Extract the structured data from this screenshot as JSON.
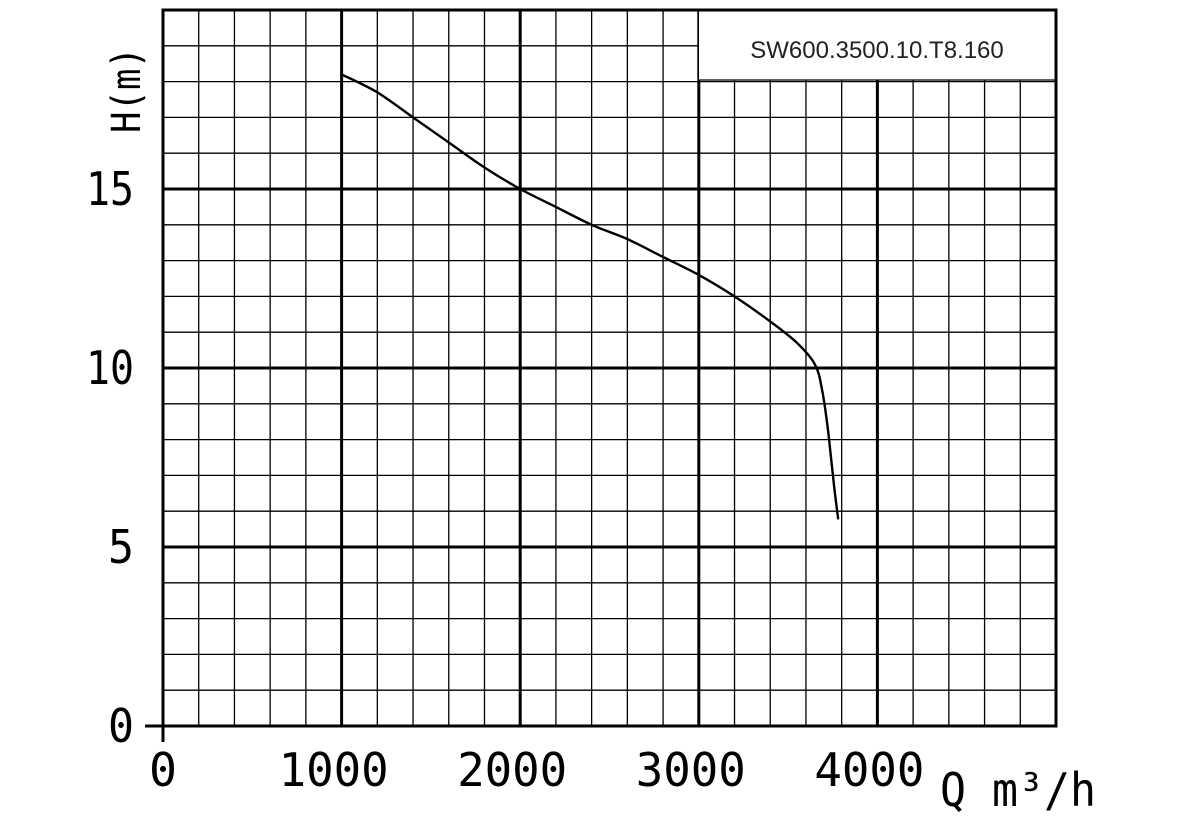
{
  "chart_data": {
    "type": "line",
    "title": "SW600.3500.10.T8.160",
    "xlabel": "Q m³/h",
    "ylabel": "H(m)",
    "xlim": [
      0,
      5000
    ],
    "ylim": [
      0,
      20
    ],
    "x_ticks": [
      0,
      1000,
      2000,
      3000,
      4000
    ],
    "x_tick_labels": [
      "0",
      "1000",
      "2000",
      "3000",
      "4000"
    ],
    "y_ticks": [
      0,
      5,
      10,
      15
    ],
    "y_tick_labels": [
      "0",
      "5",
      "10",
      "15"
    ],
    "grid": true,
    "series": [
      {
        "x": [
          1000,
          1200,
          1400,
          1600,
          1800,
          2000,
          2200,
          2400,
          2600,
          2800,
          3000,
          3200,
          3400,
          3550,
          3650,
          3690,
          3720,
          3740,
          3760,
          3780
        ],
        "y": [
          18.2,
          17.7,
          17.0,
          16.3,
          15.6,
          15.0,
          14.5,
          14.0,
          13.6,
          13.1,
          12.6,
          12.0,
          11.3,
          10.7,
          10.1,
          9.4,
          8.4,
          7.5,
          6.6,
          5.8
        ]
      }
    ]
  }
}
